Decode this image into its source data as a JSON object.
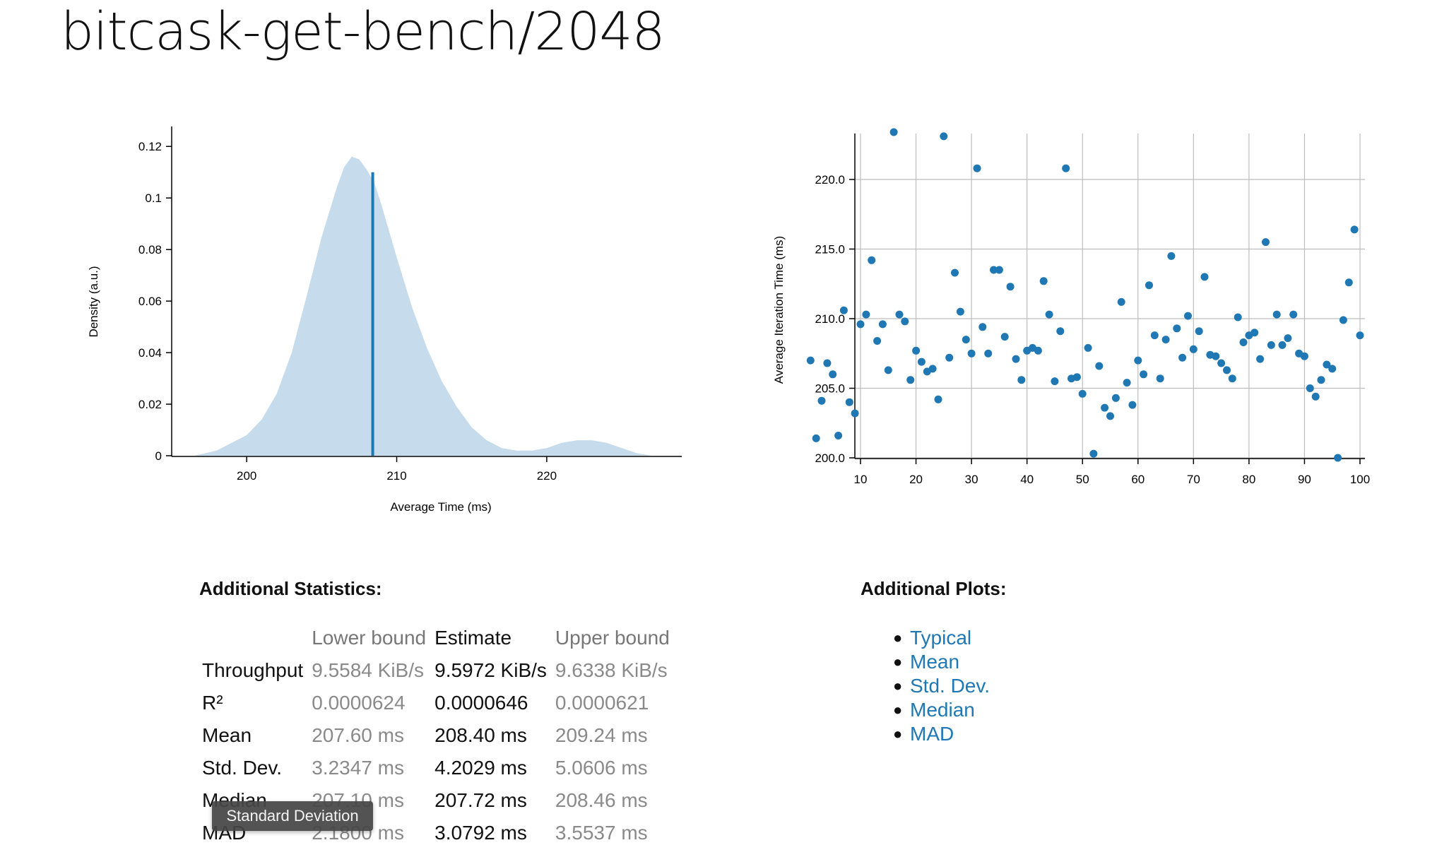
{
  "page": {
    "title": "bitcask-get-bench/2048"
  },
  "stats": {
    "heading": "Additional Statistics:",
    "columns": [
      "",
      "Lower bound",
      "Estimate",
      "Upper bound"
    ],
    "rows": [
      {
        "name": "Throughput",
        "lower": "9.5584 KiB/s",
        "estimate": "9.5972 KiB/s",
        "upper": "9.6338 KiB/s"
      },
      {
        "name": "R²",
        "lower": "0.0000624",
        "estimate": "0.0000646",
        "upper": "0.0000621"
      },
      {
        "name": "Mean",
        "lower": "207.60 ms",
        "estimate": "208.40 ms",
        "upper": "209.24 ms"
      },
      {
        "name": "Std. Dev.",
        "lower": "3.2347 ms",
        "estimate": "4.2029 ms",
        "upper": "5.0606 ms"
      },
      {
        "name": "Median",
        "lower": "207.10 ms",
        "estimate": "207.72 ms",
        "upper": "208.46 ms"
      },
      {
        "name": "MAD",
        "lower": "2.1800 ms",
        "estimate": "3.0792 ms",
        "upper": "3.5537 ms"
      }
    ],
    "tooltip": "Standard Deviation"
  },
  "plots": {
    "heading": "Additional Plots:",
    "links": [
      "Typical",
      "Mean",
      "Std. Dev.",
      "Median",
      "MAD"
    ]
  },
  "colors": {
    "pdf_fill": "#c6dcec",
    "estimate_line": "#1f78b4",
    "point": "#1f78b4",
    "link": "#1f78b4"
  },
  "chart_data": [
    {
      "type": "area",
      "xlabel": "Average Time (ms)",
      "ylabel": "Density (a.u.)",
      "xlim": [
        195,
        229
      ],
      "ylim": [
        0,
        0.125
      ],
      "xticks": [
        200,
        210,
        220
      ],
      "yticks": [
        0,
        0.02,
        0.04,
        0.06,
        0.08,
        0.1,
        0.12
      ],
      "ytick_labels": [
        "0",
        "0.02",
        "0.04",
        "0.06",
        "0.08",
        "0.1",
        "0.12"
      ],
      "grid": false,
      "x": [
        196.5,
        198,
        200,
        201,
        202,
        203,
        204,
        205,
        206,
        206.5,
        207,
        207.5,
        208,
        208.5,
        209,
        210,
        211,
        212,
        213,
        214,
        215,
        216,
        217,
        218,
        219,
        220,
        221,
        222,
        223,
        224,
        225,
        226,
        227
      ],
      "density": [
        0.0,
        0.002,
        0.008,
        0.014,
        0.024,
        0.04,
        0.062,
        0.085,
        0.104,
        0.112,
        0.116,
        0.115,
        0.111,
        0.106,
        0.097,
        0.077,
        0.058,
        0.042,
        0.029,
        0.019,
        0.011,
        0.006,
        0.003,
        0.002,
        0.002,
        0.003,
        0.005,
        0.006,
        0.006,
        0.005,
        0.003,
        0.001,
        0.0
      ],
      "estimate": {
        "x": 208.4,
        "density": 0.11
      }
    },
    {
      "type": "scatter",
      "xlabel": "",
      "ylabel": "Average Iteration Time (ms)",
      "xlim": [
        1,
        100
      ],
      "ylim": [
        200,
        223.5
      ],
      "xticks": [
        10,
        20,
        30,
        40,
        50,
        60,
        70,
        80,
        90,
        100
      ],
      "yticks": [
        200,
        205,
        210,
        215,
        220
      ],
      "ytick_labels": [
        "200.0",
        "205.0",
        "210.0",
        "215.0",
        "220.0"
      ],
      "grid": true,
      "points": [
        [
          1,
          207.0
        ],
        [
          2,
          201.4
        ],
        [
          3,
          204.1
        ],
        [
          4,
          206.8
        ],
        [
          5,
          206.0
        ],
        [
          6,
          201.6
        ],
        [
          7,
          210.6
        ],
        [
          8,
          204.0
        ],
        [
          9,
          203.2
        ],
        [
          10,
          209.6
        ],
        [
          11,
          210.3
        ],
        [
          12,
          214.2
        ],
        [
          13,
          208.4
        ],
        [
          14,
          209.6
        ],
        [
          15,
          206.3
        ],
        [
          16,
          223.4
        ],
        [
          17,
          210.3
        ],
        [
          18,
          209.8
        ],
        [
          19,
          205.6
        ],
        [
          20,
          207.7
        ],
        [
          21,
          206.9
        ],
        [
          22,
          206.2
        ],
        [
          23,
          206.4
        ],
        [
          24,
          204.2
        ],
        [
          25,
          223.1
        ],
        [
          26,
          207.2
        ],
        [
          27,
          213.3
        ],
        [
          28,
          210.5
        ],
        [
          29,
          208.5
        ],
        [
          30,
          207.5
        ],
        [
          31,
          220.8
        ],
        [
          32,
          209.4
        ],
        [
          33,
          207.5
        ],
        [
          34,
          213.5
        ],
        [
          35,
          213.5
        ],
        [
          36,
          208.7
        ],
        [
          37,
          212.3
        ],
        [
          38,
          207.1
        ],
        [
          39,
          205.6
        ],
        [
          40,
          207.7
        ],
        [
          41,
          207.9
        ],
        [
          42,
          207.7
        ],
        [
          43,
          212.7
        ],
        [
          44,
          210.3
        ],
        [
          45,
          205.5
        ],
        [
          46,
          209.1
        ],
        [
          47,
          220.8
        ],
        [
          48,
          205.7
        ],
        [
          49,
          205.8
        ],
        [
          50,
          204.6
        ],
        [
          51,
          207.9
        ],
        [
          52,
          200.3
        ],
        [
          53,
          206.6
        ],
        [
          54,
          203.6
        ],
        [
          55,
          203.0
        ],
        [
          56,
          204.3
        ],
        [
          57,
          211.2
        ],
        [
          58,
          205.4
        ],
        [
          59,
          203.8
        ],
        [
          60,
          207.0
        ],
        [
          61,
          206.0
        ],
        [
          62,
          212.4
        ],
        [
          63,
          208.8
        ],
        [
          64,
          205.7
        ],
        [
          65,
          208.5
        ],
        [
          66,
          214.5
        ],
        [
          67,
          209.3
        ],
        [
          68,
          207.2
        ],
        [
          69,
          210.2
        ],
        [
          70,
          207.8
        ],
        [
          71,
          209.1
        ],
        [
          72,
          213.0
        ],
        [
          73,
          207.4
        ],
        [
          74,
          207.3
        ],
        [
          75,
          206.8
        ],
        [
          76,
          206.3
        ],
        [
          77,
          205.7
        ],
        [
          78,
          210.1
        ],
        [
          79,
          208.3
        ],
        [
          80,
          208.8
        ],
        [
          81,
          209.0
        ],
        [
          82,
          207.1
        ],
        [
          83,
          215.5
        ],
        [
          84,
          208.1
        ],
        [
          85,
          210.3
        ],
        [
          86,
          208.1
        ],
        [
          87,
          208.6
        ],
        [
          88,
          210.3
        ],
        [
          89,
          207.5
        ],
        [
          90,
          207.3
        ],
        [
          91,
          205.0
        ],
        [
          92,
          204.4
        ],
        [
          93,
          205.6
        ],
        [
          94,
          206.7
        ],
        [
          95,
          206.4
        ],
        [
          96,
          200.0
        ],
        [
          97,
          209.9
        ],
        [
          98,
          212.6
        ],
        [
          99,
          216.4
        ],
        [
          100,
          208.8
        ]
      ]
    }
  ]
}
